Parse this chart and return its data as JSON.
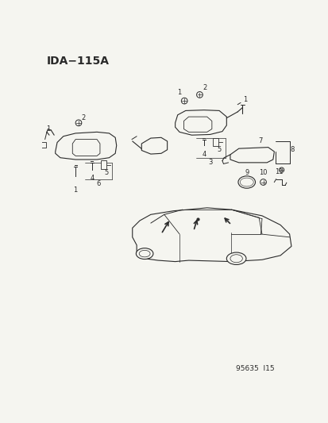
{
  "title": "IDA−115A",
  "footer": "95635  I15",
  "bg": "#f5f5f0",
  "lc": "#2a2a2a",
  "tc": "#2a2a2a",
  "fig_width": 4.14,
  "fig_height": 5.33,
  "dpi": 100
}
